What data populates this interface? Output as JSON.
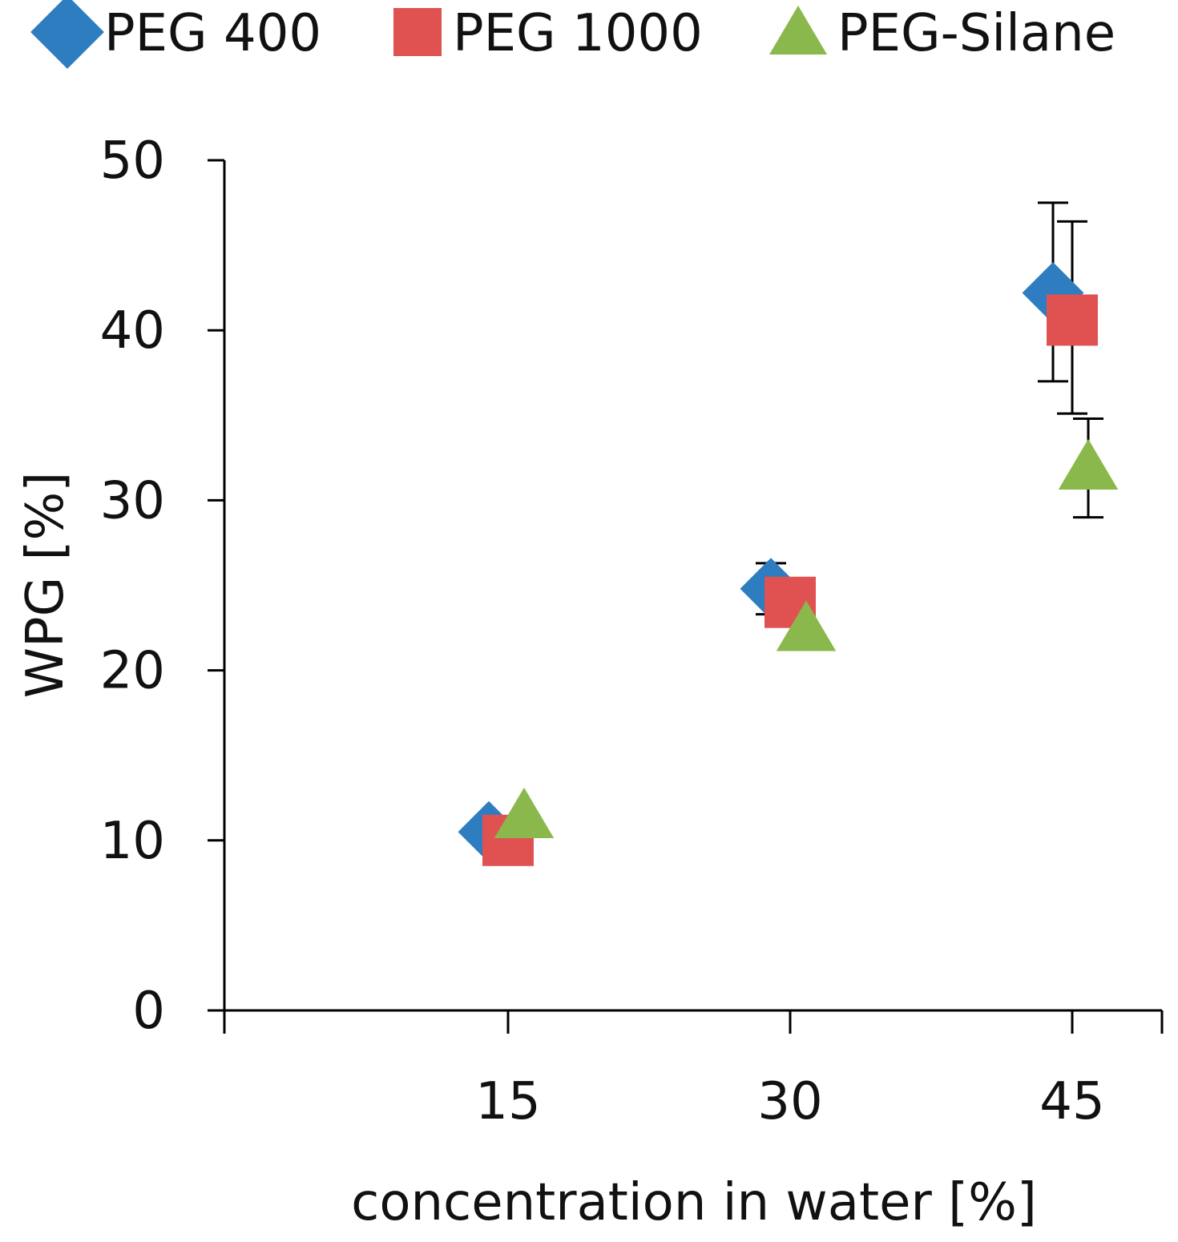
{
  "chart_data": {
    "type": "scatter",
    "title": "",
    "xlabel": "concentration in water [%]",
    "ylabel": "WPG [%]",
    "ylim": [
      0,
      50
    ],
    "yticks": [
      0,
      10,
      20,
      30,
      40,
      50
    ],
    "categories": [
      "15",
      "30",
      "45"
    ],
    "grid": false,
    "legend_position": "top",
    "series": [
      {
        "name": "PEG 400",
        "marker": "diamond",
        "color": "#2e7dc0",
        "values": [
          10.5,
          24.8,
          42.2
        ],
        "error_low": [
          null,
          23.3,
          37.0
        ],
        "error_high": [
          null,
          26.3,
          47.5
        ]
      },
      {
        "name": "PEG 1000",
        "marker": "square",
        "color": "#e05252",
        "values": [
          10.0,
          24.0,
          40.6
        ],
        "error_low": [
          null,
          null,
          35.1
        ],
        "error_high": [
          null,
          null,
          46.4
        ]
      },
      {
        "name": "PEG-Silane",
        "marker": "triangle",
        "color": "#8ab84c",
        "values": [
          11.5,
          22.5,
          32.0
        ],
        "error_low": [
          null,
          null,
          29.0
        ],
        "error_high": [
          null,
          null,
          34.8
        ]
      }
    ]
  }
}
